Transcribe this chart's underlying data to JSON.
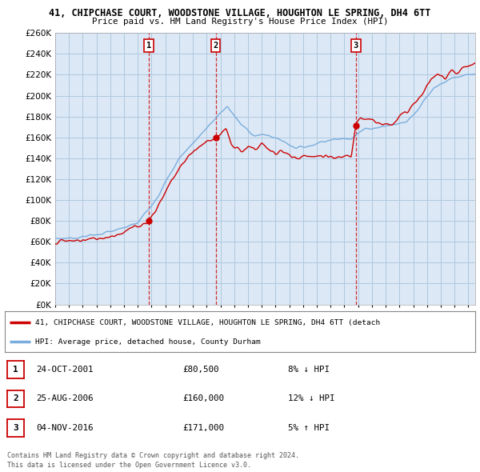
{
  "title1": "41, CHIPCHASE COURT, WOODSTONE VILLAGE, HOUGHTON LE SPRING, DH4 6TT",
  "title2": "Price paid vs. HM Land Registry's House Price Index (HPI)",
  "xlim_start": 1995.0,
  "xlim_end": 2025.5,
  "ylim": [
    0,
    260000
  ],
  "yticks": [
    0,
    20000,
    40000,
    60000,
    80000,
    100000,
    120000,
    140000,
    160000,
    180000,
    200000,
    220000,
    240000,
    260000
  ],
  "background_color": "#ffffff",
  "plot_bg_color": "#dce8f5",
  "grid_color": "#b0c8e0",
  "hpi_color": "#7aaddd",
  "price_color": "#cc0000",
  "purchase_dates": [
    2001.81,
    2006.65,
    2016.84
  ],
  "purchase_prices": [
    80500,
    160000,
    171000
  ],
  "sale_labels": [
    "1",
    "2",
    "3"
  ],
  "legend_label_red": "41, CHIPCHASE COURT, WOODSTONE VILLAGE, HOUGHTON LE SPRING, DH4 6TT (detach",
  "legend_label_blue": "HPI: Average price, detached house, County Durham",
  "table_rows": [
    [
      "1",
      "24-OCT-2001",
      "£80,500",
      "8% ↓ HPI"
    ],
    [
      "2",
      "25-AUG-2006",
      "£160,000",
      "12% ↓ HPI"
    ],
    [
      "3",
      "04-NOV-2016",
      "£171,000",
      "5% ↑ HPI"
    ]
  ],
  "footnote1": "Contains HM Land Registry data © Crown copyright and database right 2024.",
  "footnote2": "This data is licensed under the Open Government Licence v3.0."
}
